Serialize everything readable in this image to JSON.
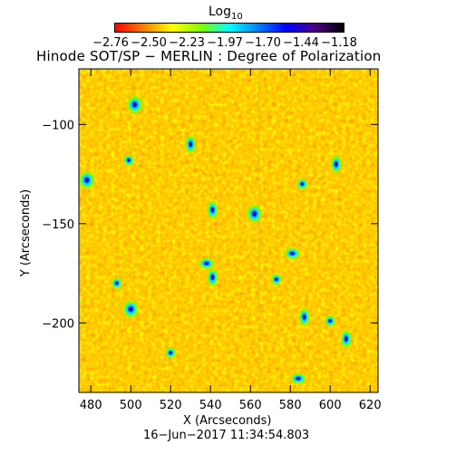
{
  "colorbar": {
    "title_base": "Log",
    "title_sub": "10",
    "tick_labels": [
      "−2.76",
      "−2.50",
      "−2.23",
      "−1.97",
      "−1.70",
      "−1.44",
      "−1.18"
    ],
    "range": [
      -2.76,
      -1.18
    ],
    "colormap": [
      "#ff0000",
      "#ff7f00",
      "#ffff00",
      "#7fff00",
      "#00ffff",
      "#0080ff",
      "#0000ff",
      "#4b0082",
      "#000000"
    ]
  },
  "chart_data": {
    "type": "heatmap",
    "title": "Hinode SOT/SP − MERLIN : Degree of Polarization",
    "xlabel": "X (Arcseconds)",
    "ylabel": "Y (Arcseconds)",
    "xlim": [
      474,
      624
    ],
    "ylim": [
      -235,
      -72
    ],
    "xticks": [
      480,
      500,
      520,
      540,
      560,
      580,
      600,
      620
    ],
    "yticks": [
      -100,
      -150,
      -200
    ],
    "xtick_labels": [
      "480",
      "500",
      "520",
      "540",
      "560",
      "580",
      "600",
      "620"
    ],
    "ytick_labels": [
      "−100",
      "−150",
      "−200"
    ],
    "value_range": [
      -2.76,
      -1.18
    ],
    "background_level": "orange (~ -2.6)",
    "features": [
      {
        "x": 502,
        "y": -90
      },
      {
        "x": 499,
        "y": -118
      },
      {
        "x": 541,
        "y": -143
      },
      {
        "x": 538,
        "y": -170
      },
      {
        "x": 541,
        "y": -177
      },
      {
        "x": 493,
        "y": -180
      },
      {
        "x": 500,
        "y": -193
      },
      {
        "x": 586,
        "y": -130
      },
      {
        "x": 603,
        "y": -120
      },
      {
        "x": 581,
        "y": -165
      },
      {
        "x": 587,
        "y": -197
      },
      {
        "x": 600,
        "y": -199
      },
      {
        "x": 562,
        "y": -145
      },
      {
        "x": 573,
        "y": -178
      },
      {
        "x": 530,
        "y": -110
      },
      {
        "x": 584,
        "y": -228
      },
      {
        "x": 608,
        "y": -208
      },
      {
        "x": 520,
        "y": -215
      },
      {
        "x": 478,
        "y": -128
      }
    ]
  },
  "footer": "16−Jun−2017 11:34:54.803"
}
